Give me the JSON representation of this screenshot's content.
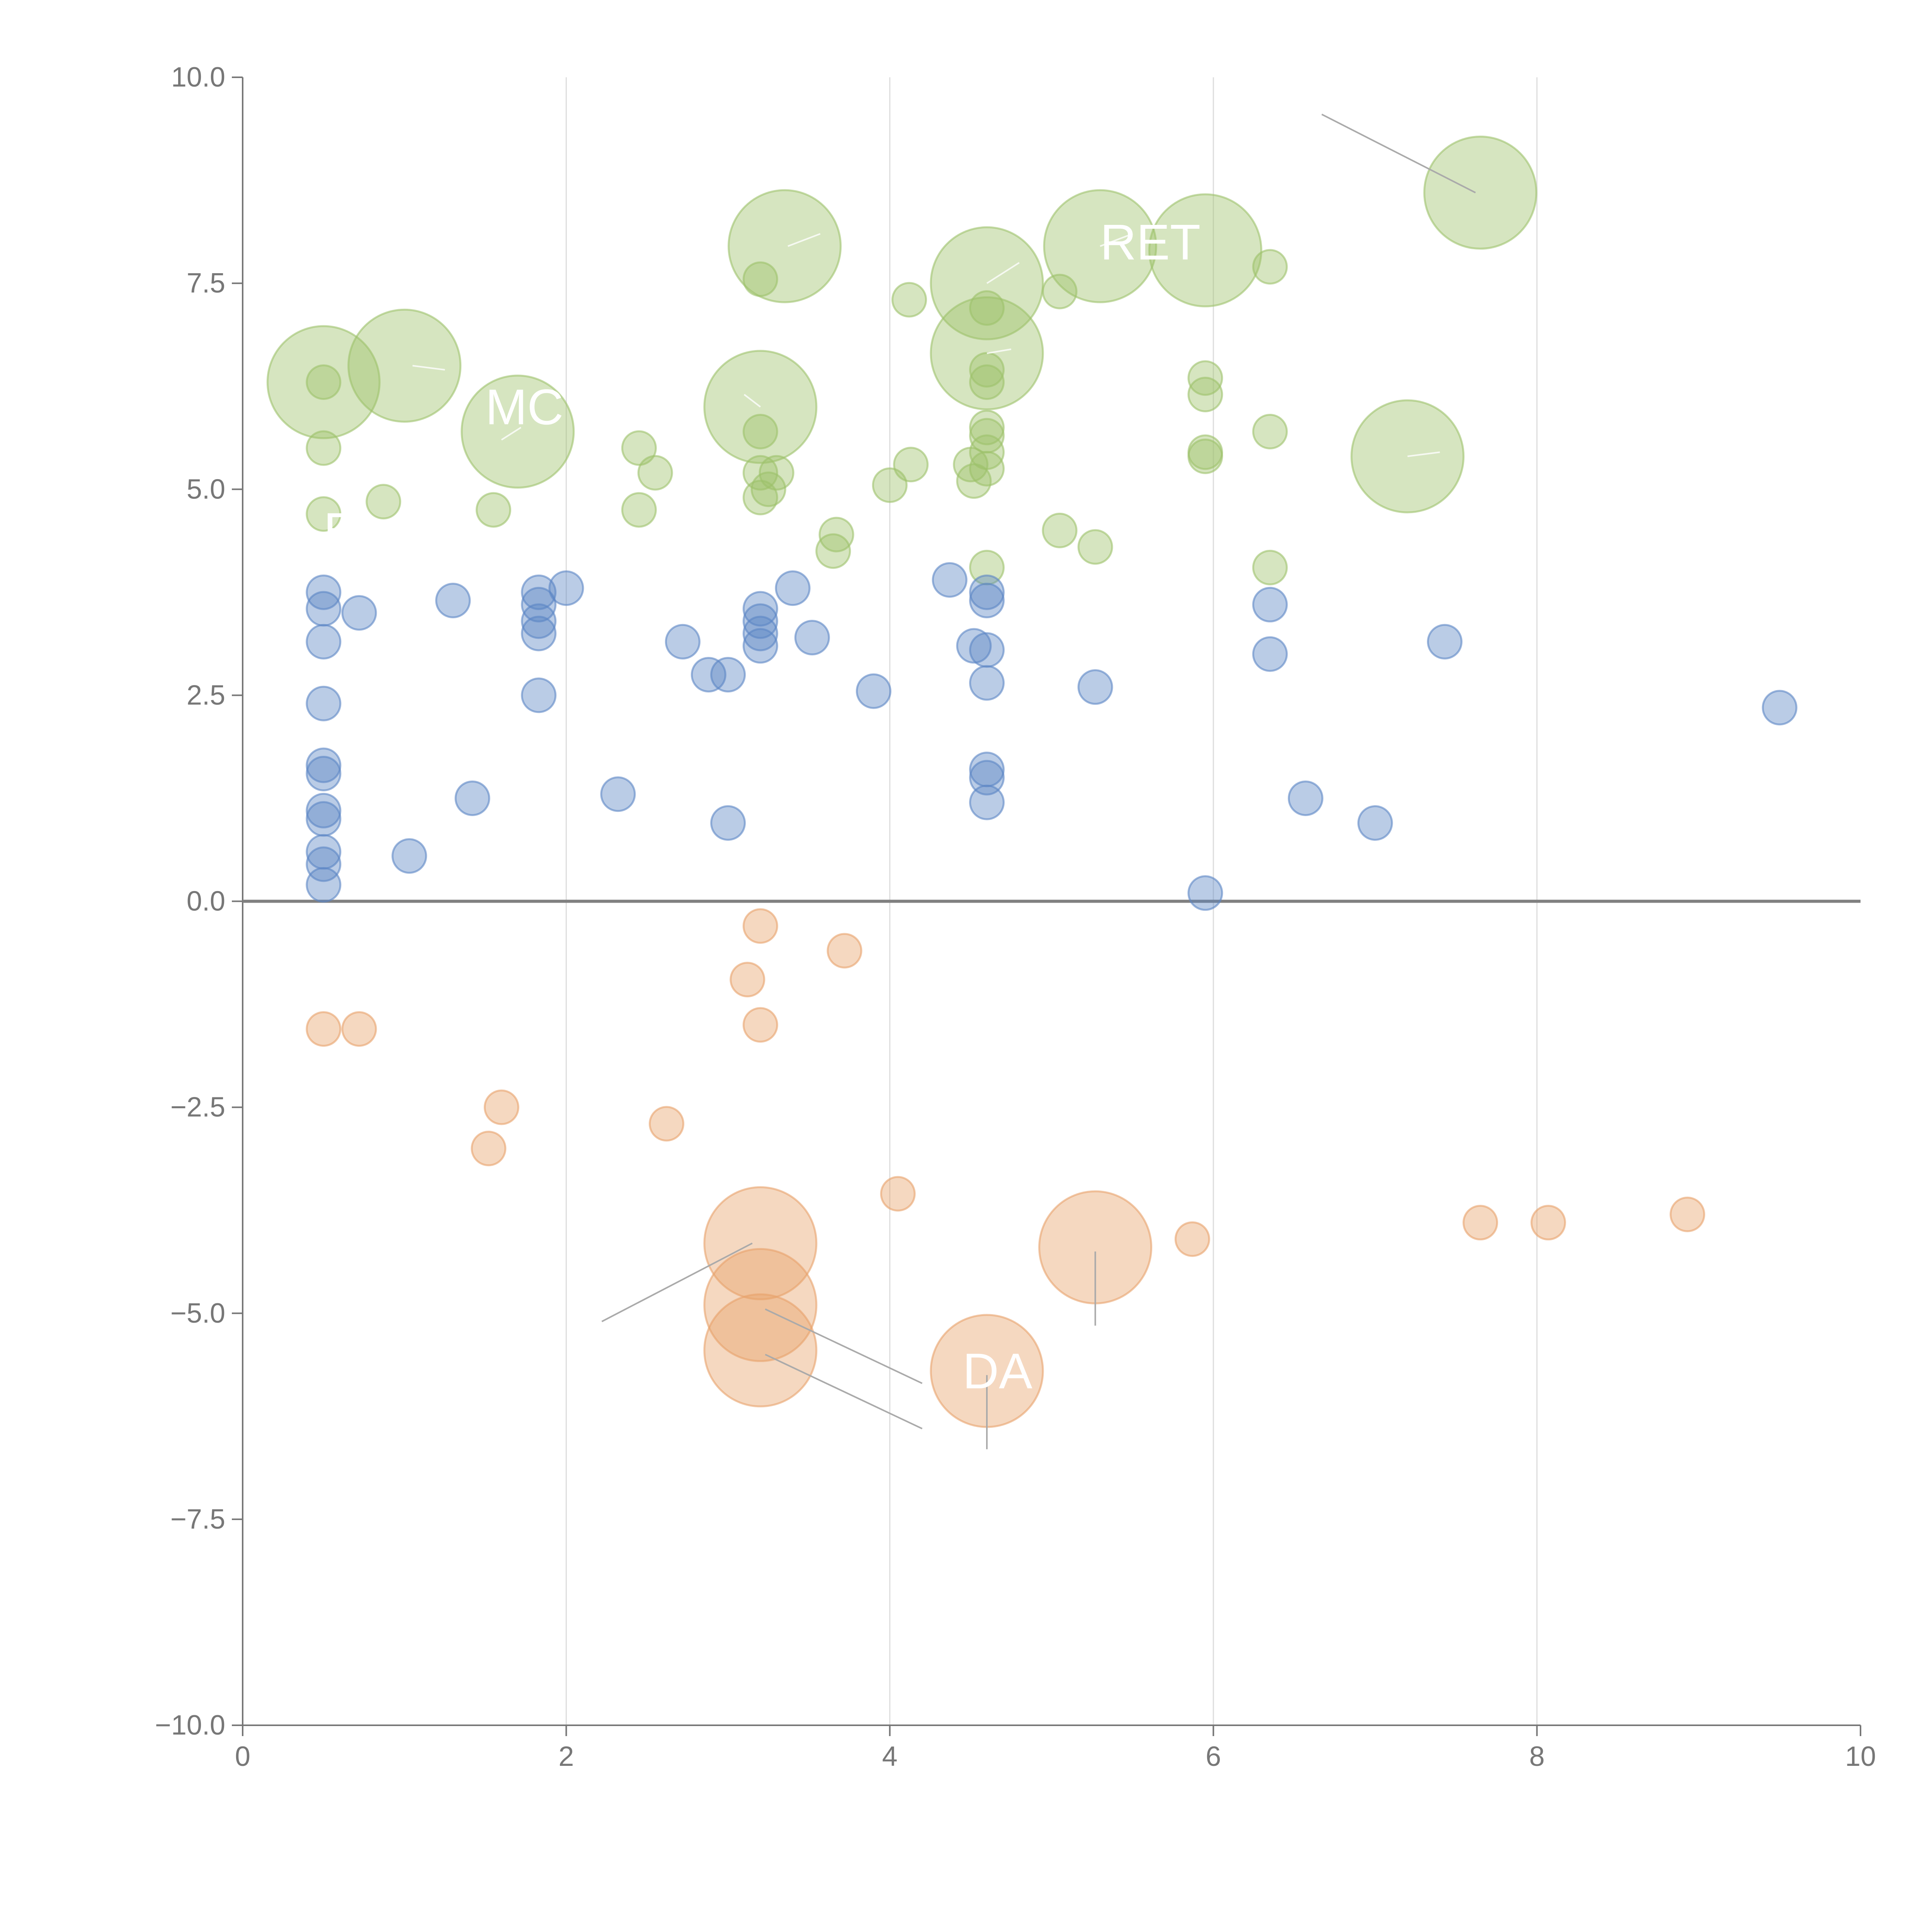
{
  "chart_data": {
    "type": "scatter",
    "title": "",
    "xlabel": "",
    "ylabel": "",
    "xlim": [
      0,
      10
    ],
    "ylim": [
      -10,
      10
    ],
    "x_ticks": [
      "0",
      "2",
      "4",
      "6",
      "8",
      "10"
    ],
    "y_ticks": [
      "10.0",
      "7.5",
      "5.0",
      "2.5",
      "0.0",
      "−2.5",
      "−5.0",
      "−7.5",
      "−10.0"
    ],
    "grid": "vertical",
    "zero_line": true,
    "colors": {
      "green": "#9dc16a",
      "blue": "#5b86c4",
      "orange": "#e8a26a",
      "grid": "#dddddd",
      "axis": "#777777"
    },
    "series": [
      {
        "color": "green",
        "points": [
          [
            0.5,
            6.3,
            5.0
          ],
          [
            1.0,
            6.5,
            5.0
          ],
          [
            1.7,
            5.7,
            5.0
          ],
          [
            3.35,
            7.95,
            5.0
          ],
          [
            3.2,
            6.0,
            5.0
          ],
          [
            4.6,
            7.5,
            5.0
          ],
          [
            4.6,
            6.65,
            5.0
          ],
          [
            5.3,
            7.95,
            5.0
          ],
          [
            5.95,
            7.9,
            5.0
          ],
          [
            7.65,
            8.6,
            5.0
          ],
          [
            7.2,
            5.4,
            5.0
          ],
          [
            0.5,
            6.3,
            1.5
          ],
          [
            0.5,
            5.5,
            1.5
          ],
          [
            0.5,
            4.7,
            1.5
          ],
          [
            0.87,
            4.85,
            1.5
          ],
          [
            1.55,
            4.75,
            1.5
          ],
          [
            2.45,
            5.5,
            1.5
          ],
          [
            2.55,
            5.2,
            1.5
          ],
          [
            2.45,
            4.75,
            1.5
          ],
          [
            3.2,
            7.55,
            1.5
          ],
          [
            3.2,
            5.7,
            1.5
          ],
          [
            3.2,
            5.2,
            1.5
          ],
          [
            3.3,
            5.2,
            1.5
          ],
          [
            3.25,
            5.0,
            1.5
          ],
          [
            3.2,
            4.9,
            1.5
          ],
          [
            3.65,
            4.25,
            1.5
          ],
          [
            3.67,
            4.45,
            1.5
          ],
          [
            4.0,
            5.05,
            1.5
          ],
          [
            4.12,
            7.3,
            1.5
          ],
          [
            4.13,
            5.3,
            1.5
          ],
          [
            4.6,
            7.2,
            1.5
          ],
          [
            4.6,
            6.45,
            1.5
          ],
          [
            4.6,
            6.3,
            1.5
          ],
          [
            4.6,
            5.75,
            1.5
          ],
          [
            4.6,
            5.65,
            1.5
          ],
          [
            4.6,
            5.45,
            1.5
          ],
          [
            4.6,
            5.25,
            1.5
          ],
          [
            4.5,
            5.3,
            1.5
          ],
          [
            4.52,
            5.1,
            1.5
          ],
          [
            4.6,
            4.05,
            1.5
          ],
          [
            5.05,
            7.4,
            1.5
          ],
          [
            5.05,
            4.5,
            1.5
          ],
          [
            5.27,
            4.3,
            1.5
          ],
          [
            5.95,
            6.35,
            1.5
          ],
          [
            5.95,
            6.15,
            1.5
          ],
          [
            5.95,
            5.45,
            1.5
          ],
          [
            5.95,
            5.4,
            1.5
          ],
          [
            6.35,
            7.7,
            1.5
          ],
          [
            6.35,
            5.7,
            1.5
          ],
          [
            6.35,
            4.05,
            1.5
          ]
        ]
      },
      {
        "color": "blue",
        "points": [
          [
            0.5,
            3.75,
            1.5
          ],
          [
            0.5,
            3.55,
            1.5
          ],
          [
            0.5,
            3.15,
            1.5
          ],
          [
            0.5,
            2.4,
            1.5
          ],
          [
            0.5,
            1.65,
            1.5
          ],
          [
            0.5,
            1.55,
            1.5
          ],
          [
            0.5,
            1.1,
            1.5
          ],
          [
            0.5,
            1.0,
            1.5
          ],
          [
            0.5,
            0.6,
            1.5
          ],
          [
            0.5,
            0.45,
            1.5
          ],
          [
            0.5,
            0.2,
            1.5
          ],
          [
            0.72,
            3.5,
            1.5
          ],
          [
            1.03,
            0.55,
            1.5
          ],
          [
            1.3,
            3.65,
            1.5
          ],
          [
            1.42,
            1.25,
            1.5
          ],
          [
            1.83,
            3.75,
            1.5
          ],
          [
            1.83,
            3.6,
            1.5
          ],
          [
            1.83,
            3.4,
            1.5
          ],
          [
            1.83,
            3.25,
            1.5
          ],
          [
            1.83,
            2.5,
            1.5
          ],
          [
            2.0,
            3.8,
            1.5
          ],
          [
            2.32,
            1.3,
            1.5
          ],
          [
            2.72,
            3.15,
            1.5
          ],
          [
            2.88,
            2.75,
            1.5
          ],
          [
            3.0,
            2.75,
            1.5
          ],
          [
            3.0,
            0.95,
            1.5
          ],
          [
            3.2,
            3.55,
            1.5
          ],
          [
            3.2,
            3.4,
            1.5
          ],
          [
            3.2,
            3.25,
            1.5
          ],
          [
            3.2,
            3.1,
            1.5
          ],
          [
            3.4,
            3.8,
            1.5
          ],
          [
            3.52,
            3.2,
            1.5
          ],
          [
            3.9,
            2.55,
            1.5
          ],
          [
            4.37,
            3.9,
            1.5
          ],
          [
            4.52,
            3.1,
            1.5
          ],
          [
            4.6,
            3.75,
            1.5
          ],
          [
            4.6,
            3.65,
            1.5
          ],
          [
            4.6,
            3.05,
            1.5
          ],
          [
            4.6,
            2.65,
            1.5
          ],
          [
            4.6,
            1.6,
            1.5
          ],
          [
            4.6,
            1.5,
            1.5
          ],
          [
            4.6,
            1.2,
            1.5
          ],
          [
            5.27,
            2.6,
            1.5
          ],
          [
            5.95,
            0.1,
            1.5
          ],
          [
            6.35,
            3.6,
            1.5
          ],
          [
            6.35,
            3.0,
            1.5
          ],
          [
            6.57,
            1.25,
            1.5
          ],
          [
            7.0,
            0.95,
            1.5
          ],
          [
            7.43,
            3.15,
            1.5
          ],
          [
            9.5,
            2.35,
            1.5
          ]
        ]
      },
      {
        "color": "orange",
        "points": [
          [
            3.2,
            -4.15,
            5.0
          ],
          [
            3.2,
            -4.9,
            5.0
          ],
          [
            3.2,
            -5.45,
            5.0
          ],
          [
            5.27,
            -4.2,
            5.0
          ],
          [
            4.6,
            -5.7,
            5.0
          ],
          [
            0.5,
            -1.55,
            1.5
          ],
          [
            0.72,
            -1.55,
            1.5
          ],
          [
            1.52,
            -3.0,
            1.5
          ],
          [
            1.6,
            -2.5,
            1.5
          ],
          [
            2.62,
            -2.7,
            1.5
          ],
          [
            3.2,
            -0.3,
            1.5
          ],
          [
            3.12,
            -0.95,
            1.5
          ],
          [
            3.2,
            -1.5,
            1.5
          ],
          [
            3.72,
            -0.6,
            1.5
          ],
          [
            4.05,
            -3.55,
            1.5
          ],
          [
            5.87,
            -4.1,
            1.5
          ],
          [
            7.65,
            -3.9,
            1.5
          ],
          [
            8.07,
            -3.9,
            1.5
          ],
          [
            8.93,
            -3.8,
            1.5
          ]
        ]
      }
    ],
    "annotations": [
      {
        "text": "MC",
        "x": 1.5,
        "y": 6.0
      },
      {
        "text": "RET",
        "x": 5.3,
        "y": 8.0
      },
      {
        "text": "E",
        "x": 0.5,
        "y": 4.5
      },
      {
        "text": "DA",
        "x": 4.45,
        "y": -5.7
      }
    ],
    "leader_lines": [
      {
        "from": [
          6.67,
          9.55
        ],
        "to": [
          7.62,
          8.6
        ],
        "style": "gray"
      },
      {
        "from": [
          2.22,
          -5.1
        ],
        "to": [
          3.15,
          -4.15
        ],
        "style": "gray"
      },
      {
        "from": [
          3.23,
          -4.95
        ],
        "to": [
          4.2,
          -5.85
        ],
        "style": "gray"
      },
      {
        "from": [
          3.23,
          -5.5
        ],
        "to": [
          4.2,
          -6.4
        ],
        "style": "gray"
      },
      {
        "from": [
          5.27,
          -4.25
        ],
        "to": [
          5.27,
          -5.15
        ],
        "style": "gray"
      },
      {
        "from": [
          4.6,
          -5.75
        ],
        "to": [
          4.6,
          -6.65
        ],
        "style": "gray"
      },
      {
        "from": [
          1.05,
          6.5
        ],
        "to": [
          1.25,
          6.45
        ],
        "style": "light"
      },
      {
        "from": [
          1.6,
          5.6
        ],
        "to": [
          1.72,
          5.75
        ],
        "style": "light"
      },
      {
        "from": [
          3.2,
          6.0
        ],
        "to": [
          3.1,
          6.15
        ],
        "style": "light"
      },
      {
        "from": [
          3.37,
          7.95
        ],
        "to": [
          3.57,
          8.1
        ],
        "style": "light"
      },
      {
        "from": [
          4.6,
          7.5
        ],
        "to": [
          4.8,
          7.75
        ],
        "style": "light"
      },
      {
        "from": [
          4.6,
          6.65
        ],
        "to": [
          4.75,
          6.7
        ],
        "style": "light"
      },
      {
        "from": [
          5.3,
          7.95
        ],
        "to": [
          5.5,
          8.1
        ],
        "style": "light"
      },
      {
        "from": [
          7.2,
          5.4
        ],
        "to": [
          7.4,
          5.45
        ],
        "style": "light"
      }
    ]
  }
}
